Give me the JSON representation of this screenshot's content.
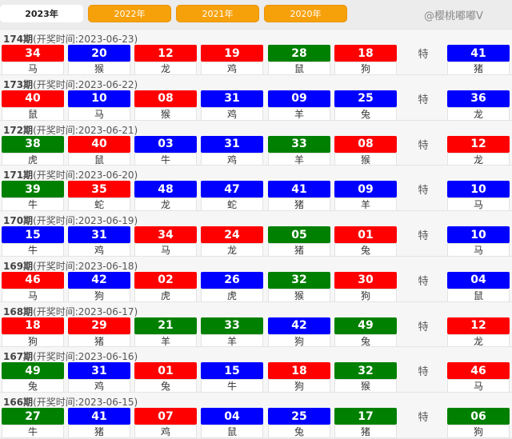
{
  "colors": {
    "r": "#ff0000",
    "b": "#0000ff",
    "g": "#008000"
  },
  "tabs": [
    {
      "label": "2023年",
      "active": true
    },
    {
      "label": "2022年"
    },
    {
      "label": "2021年"
    },
    {
      "label": "2020年"
    }
  ],
  "special_label": "特",
  "watermark": "@樱桃嘟嘟V",
  "draws": [
    {
      "period": "174期",
      "time": "(开奖时间:2023-06-23)",
      "balls": [
        [
          "34",
          "r",
          "马"
        ],
        [
          "20",
          "b",
          "猴"
        ],
        [
          "12",
          "r",
          "龙"
        ],
        [
          "19",
          "r",
          "鸡"
        ],
        [
          "28",
          "g",
          "鼠"
        ],
        [
          "18",
          "r",
          "狗"
        ]
      ],
      "special": [
        "41",
        "b",
        "猪"
      ]
    },
    {
      "period": "173期",
      "time": "(开奖时间:2023-06-22)",
      "balls": [
        [
          "40",
          "r",
          "鼠"
        ],
        [
          "10",
          "b",
          "马"
        ],
        [
          "08",
          "r",
          "猴"
        ],
        [
          "31",
          "b",
          "鸡"
        ],
        [
          "09",
          "b",
          "羊"
        ],
        [
          "25",
          "b",
          "兔"
        ]
      ],
      "special": [
        "36",
        "b",
        "龙"
      ]
    },
    {
      "period": "172期",
      "time": "(开奖时间:2023-06-21)",
      "balls": [
        [
          "38",
          "g",
          "虎"
        ],
        [
          "40",
          "r",
          "鼠"
        ],
        [
          "03",
          "b",
          "牛"
        ],
        [
          "31",
          "b",
          "鸡"
        ],
        [
          "33",
          "g",
          "羊"
        ],
        [
          "08",
          "r",
          "猴"
        ]
      ],
      "special": [
        "12",
        "r",
        "龙"
      ]
    },
    {
      "period": "171期",
      "time": "(开奖时间:2023-06-20)",
      "balls": [
        [
          "39",
          "g",
          "牛"
        ],
        [
          "35",
          "r",
          "蛇"
        ],
        [
          "48",
          "b",
          "龙"
        ],
        [
          "47",
          "b",
          "蛇"
        ],
        [
          "41",
          "b",
          "猪"
        ],
        [
          "09",
          "b",
          "羊"
        ]
      ],
      "special": [
        "10",
        "b",
        "马"
      ]
    },
    {
      "period": "170期",
      "time": "(开奖时间:2023-06-19)",
      "balls": [
        [
          "15",
          "b",
          "牛"
        ],
        [
          "31",
          "b",
          "鸡"
        ],
        [
          "34",
          "r",
          "马"
        ],
        [
          "24",
          "r",
          "龙"
        ],
        [
          "05",
          "g",
          "猪"
        ],
        [
          "01",
          "r",
          "兔"
        ]
      ],
      "special": [
        "10",
        "b",
        "马"
      ]
    },
    {
      "period": "169期",
      "time": "(开奖时间:2023-06-18)",
      "balls": [
        [
          "46",
          "r",
          "马"
        ],
        [
          "42",
          "b",
          "狗"
        ],
        [
          "02",
          "r",
          "虎"
        ],
        [
          "26",
          "b",
          "虎"
        ],
        [
          "32",
          "g",
          "猴"
        ],
        [
          "30",
          "r",
          "狗"
        ]
      ],
      "special": [
        "04",
        "b",
        "鼠"
      ]
    },
    {
      "period": "168期",
      "time": "(开奖时间:2023-06-17)",
      "balls": [
        [
          "18",
          "r",
          "狗"
        ],
        [
          "29",
          "r",
          "猪"
        ],
        [
          "21",
          "g",
          "羊"
        ],
        [
          "33",
          "g",
          "羊"
        ],
        [
          "42",
          "b",
          "狗"
        ],
        [
          "49",
          "g",
          "兔"
        ]
      ],
      "special": [
        "12",
        "r",
        "龙"
      ]
    },
    {
      "period": "167期",
      "time": "(开奖时间:2023-06-16)",
      "balls": [
        [
          "49",
          "g",
          "兔"
        ],
        [
          "31",
          "b",
          "鸡"
        ],
        [
          "01",
          "r",
          "兔"
        ],
        [
          "15",
          "b",
          "牛"
        ],
        [
          "18",
          "r",
          "狗"
        ],
        [
          "32",
          "g",
          "猴"
        ]
      ],
      "special": [
        "46",
        "r",
        "马"
      ]
    },
    {
      "period": "166期",
      "time": "(开奖时间:2023-06-15)",
      "balls": [
        [
          "27",
          "g",
          "牛"
        ],
        [
          "41",
          "b",
          "猪"
        ],
        [
          "07",
          "r",
          "鸡"
        ],
        [
          "04",
          "b",
          "鼠"
        ],
        [
          "25",
          "b",
          "兔"
        ],
        [
          "17",
          "g",
          "猪"
        ]
      ],
      "special": [
        "06",
        "g",
        "狗"
      ]
    }
  ]
}
